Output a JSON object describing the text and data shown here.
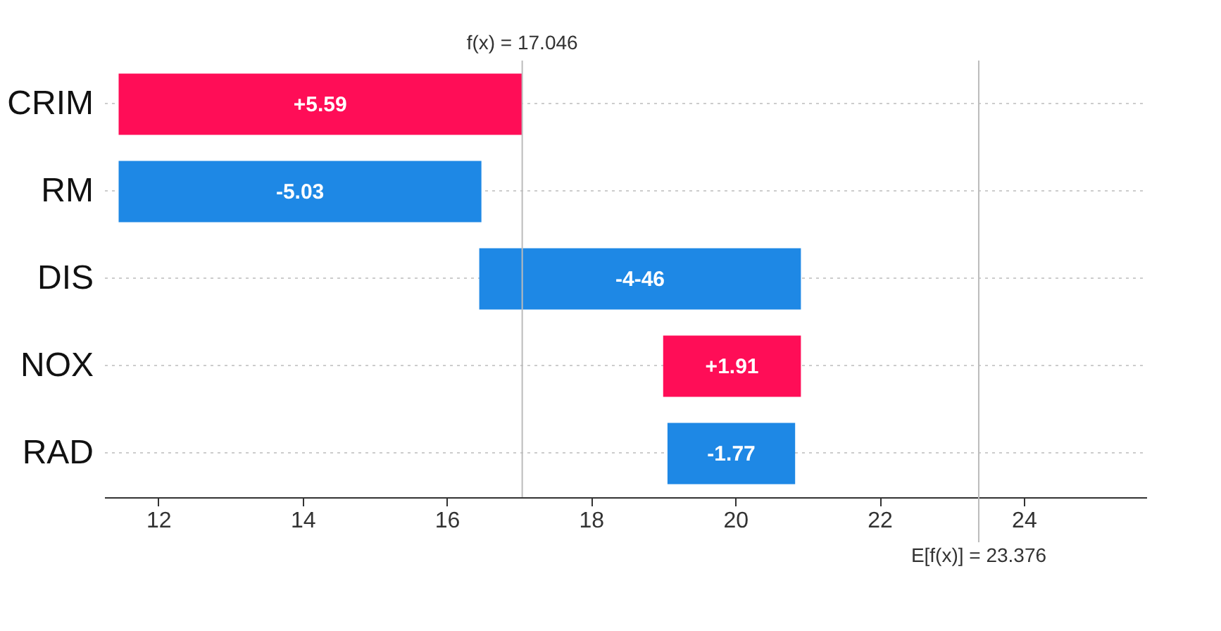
{
  "chart_data": {
    "type": "bar",
    "orientation": "horizontal",
    "categories": [
      "CRIM",
      "RM",
      "DIS",
      "NOX",
      "RAD"
    ],
    "values": [
      5.59,
      -5.03,
      -4.46,
      1.91,
      -1.77
    ],
    "base": [
      11.45,
      16.48,
      20.91,
      19.0,
      20.83
    ],
    "colors": [
      "#ff0d57",
      "#1e88e5",
      "#1e88e5",
      "#ff0d57",
      "#1e88e5"
    ],
    "value_labels": [
      "+5.59",
      "-5.03",
      "-4-46",
      "+1.91",
      "-1.77"
    ],
    "xlim": [
      11.25,
      25.7
    ],
    "xticks": [
      12,
      14,
      16,
      18,
      20,
      22,
      24
    ],
    "ref_lines": [
      {
        "axis": "x",
        "value": 17.046,
        "label": "f(x) = 17.046",
        "color": "#bbbbbb"
      },
      {
        "axis": "x",
        "value": 23.376,
        "label": "E[f(x)] = 23.376",
        "color": "#bbbbbb"
      }
    ],
    "grid": "y"
  }
}
